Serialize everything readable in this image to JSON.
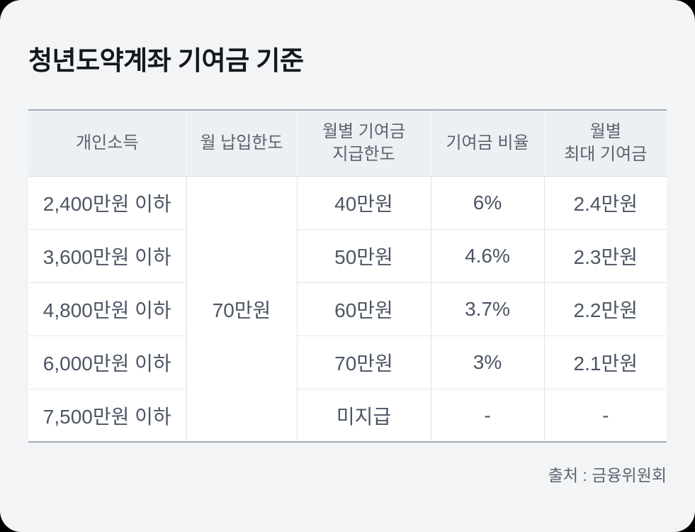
{
  "page": {
    "outside_background": "#000000",
    "card_background": "#f2f4f6",
    "accent_border_color": "#a7aeb8",
    "header_background": "#ecf0f3"
  },
  "title": "청년도약계좌 기여금 기준",
  "table": {
    "columns": {
      "income": "개인소득",
      "monthly_deposit_limit": "월 납입한도",
      "monthly_contribution_limit": "월별 기여금\n지급한도",
      "contribution_rate": "기여금 비율",
      "monthly_max_contribution": "월별\n최대 기여금"
    },
    "merged_deposit_limit": "70만원",
    "rows": [
      {
        "income": "2,400만원 이하",
        "contribution_limit": "40만원",
        "rate": "6%",
        "max": "2.4만원"
      },
      {
        "income": "3,600만원 이하",
        "contribution_limit": "50만원",
        "rate": "4.6%",
        "max": "2.3만원"
      },
      {
        "income": "4,800만원 이하",
        "contribution_limit": "60만원",
        "rate": "3.7%",
        "max": "2.2만원"
      },
      {
        "income": "6,000만원 이하",
        "contribution_limit": "70만원",
        "rate": "3%",
        "max": "2.1만원"
      },
      {
        "income": "7,500만원 이하",
        "contribution_limit": "미지급",
        "rate": "-",
        "max": "-"
      }
    ]
  },
  "source": "출처 : 금융위원회"
}
